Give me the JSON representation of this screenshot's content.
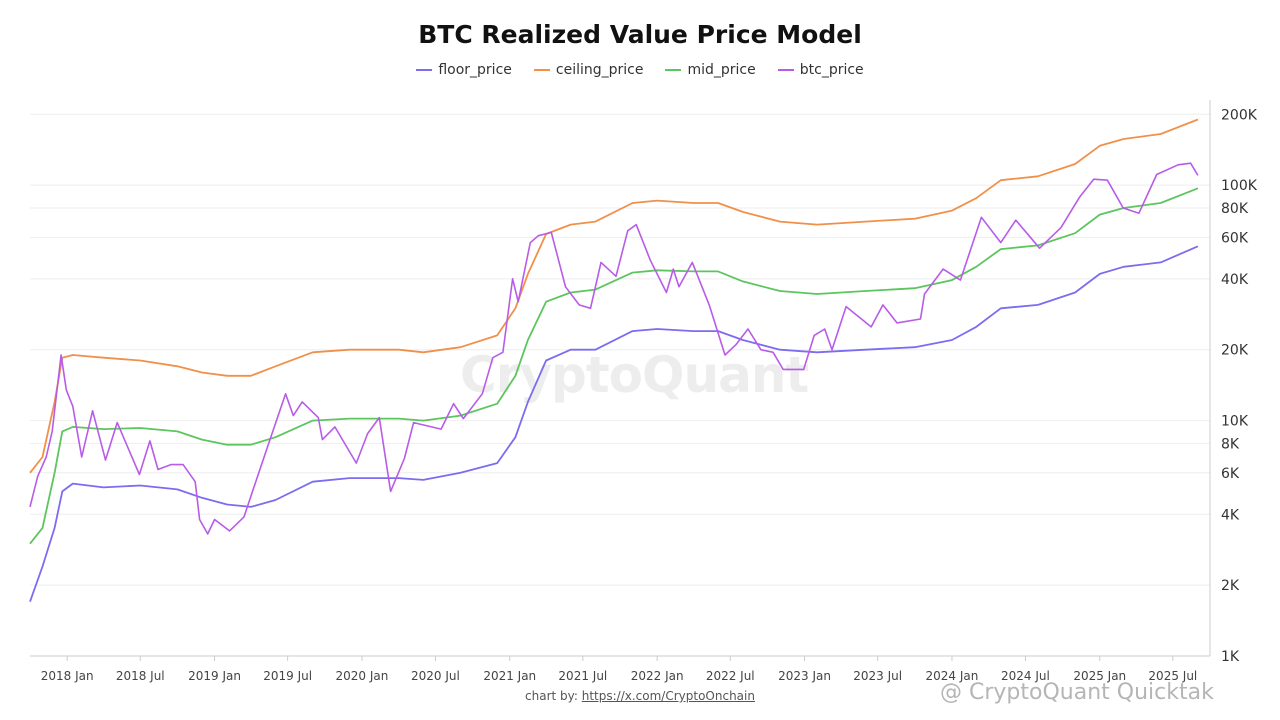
{
  "chart_data": {
    "type": "line",
    "title": "BTC Realized Value Price Model",
    "y_scale": "log",
    "ylim": [
      1000,
      230000
    ],
    "xlim": [
      "2017-10-01",
      "2025-10-01"
    ],
    "y_ticks": [
      {
        "value": 1000,
        "label": "1K"
      },
      {
        "value": 2000,
        "label": "2K"
      },
      {
        "value": 4000,
        "label": "4K"
      },
      {
        "value": 6000,
        "label": "6K"
      },
      {
        "value": 8000,
        "label": "8K"
      },
      {
        "value": 10000,
        "label": "10K"
      },
      {
        "value": 20000,
        "label": "20K"
      },
      {
        "value": 40000,
        "label": "40K"
      },
      {
        "value": 60000,
        "label": "60K"
      },
      {
        "value": 80000,
        "label": "80K"
      },
      {
        "value": 100000,
        "label": "100K"
      },
      {
        "value": 200000,
        "label": "200K"
      }
    ],
    "x_ticks": [
      {
        "date": "2018-01-01",
        "label": "2018 Jan"
      },
      {
        "date": "2018-07-01",
        "label": "2018 Jul"
      },
      {
        "date": "2019-01-01",
        "label": "2019 Jan"
      },
      {
        "date": "2019-07-01",
        "label": "2019 Jul"
      },
      {
        "date": "2020-01-01",
        "label": "2020 Jan"
      },
      {
        "date": "2020-07-01",
        "label": "2020 Jul"
      },
      {
        "date": "2021-01-01",
        "label": "2021 Jan"
      },
      {
        "date": "2021-07-01",
        "label": "2021 Jul"
      },
      {
        "date": "2022-01-01",
        "label": "2022 Jan"
      },
      {
        "date": "2022-07-01",
        "label": "2022 Jul"
      },
      {
        "date": "2023-01-01",
        "label": "2023 Jan"
      },
      {
        "date": "2023-07-01",
        "label": "2023 Jul"
      },
      {
        "date": "2024-01-01",
        "label": "2024 Jan"
      },
      {
        "date": "2024-07-01",
        "label": "2024 Jul"
      },
      {
        "date": "2025-01-01",
        "label": "2025 Jan"
      },
      {
        "date": "2025-07-01",
        "label": "2025 Jul"
      }
    ],
    "grid": true,
    "legend_position": "top-center",
    "series": [
      {
        "name": "floor_price",
        "color": "#7b6cf0",
        "points": [
          [
            "2017-10-01",
            1700
          ],
          [
            "2017-11-01",
            2400
          ],
          [
            "2017-12-01",
            3500
          ],
          [
            "2017-12-20",
            5000
          ],
          [
            "2018-01-15",
            5400
          ],
          [
            "2018-04-01",
            5200
          ],
          [
            "2018-07-01",
            5300
          ],
          [
            "2018-10-01",
            5100
          ],
          [
            "2018-12-01",
            4700
          ],
          [
            "2019-02-01",
            4400
          ],
          [
            "2019-04-01",
            4300
          ],
          [
            "2019-06-01",
            4600
          ],
          [
            "2019-09-01",
            5500
          ],
          [
            "2019-12-01",
            5700
          ],
          [
            "2020-04-01",
            5700
          ],
          [
            "2020-06-01",
            5600
          ],
          [
            "2020-09-01",
            6000
          ],
          [
            "2020-12-01",
            6600
          ],
          [
            "2021-01-15",
            8500
          ],
          [
            "2021-02-15",
            12000
          ],
          [
            "2021-04-01",
            18000
          ],
          [
            "2021-06-01",
            20000
          ],
          [
            "2021-08-01",
            20000
          ],
          [
            "2021-11-01",
            24000
          ],
          [
            "2022-01-01",
            24500
          ],
          [
            "2022-04-01",
            24000
          ],
          [
            "2022-06-01",
            24000
          ],
          [
            "2022-08-01",
            22000
          ],
          [
            "2022-11-01",
            20000
          ],
          [
            "2023-02-01",
            19500
          ],
          [
            "2023-06-01",
            20000
          ],
          [
            "2023-10-01",
            20500
          ],
          [
            "2024-01-01",
            22000
          ],
          [
            "2024-03-01",
            25000
          ],
          [
            "2024-05-01",
            30000
          ],
          [
            "2024-08-01",
            31000
          ],
          [
            "2024-11-01",
            35000
          ],
          [
            "2025-01-01",
            42000
          ],
          [
            "2025-03-01",
            45000
          ],
          [
            "2025-06-01",
            47000
          ],
          [
            "2025-09-01",
            55000
          ]
        ]
      },
      {
        "name": "ceiling_price",
        "color": "#f0904a",
        "points": [
          [
            "2017-10-01",
            6000
          ],
          [
            "2017-11-01",
            7000
          ],
          [
            "2017-12-01",
            12000
          ],
          [
            "2017-12-20",
            18500
          ],
          [
            "2018-01-15",
            19000
          ],
          [
            "2018-04-01",
            18500
          ],
          [
            "2018-07-01",
            18000
          ],
          [
            "2018-10-01",
            17000
          ],
          [
            "2018-12-01",
            16000
          ],
          [
            "2019-02-01",
            15500
          ],
          [
            "2019-04-01",
            15500
          ],
          [
            "2019-06-01",
            17000
          ],
          [
            "2019-09-01",
            19500
          ],
          [
            "2019-12-01",
            20000
          ],
          [
            "2020-04-01",
            20000
          ],
          [
            "2020-06-01",
            19500
          ],
          [
            "2020-09-01",
            20500
          ],
          [
            "2020-12-01",
            23000
          ],
          [
            "2021-01-15",
            30000
          ],
          [
            "2021-02-15",
            42000
          ],
          [
            "2021-04-01",
            62000
          ],
          [
            "2021-06-01",
            68000
          ],
          [
            "2021-08-01",
            70000
          ],
          [
            "2021-11-01",
            84000
          ],
          [
            "2022-01-01",
            86000
          ],
          [
            "2022-04-01",
            84000
          ],
          [
            "2022-06-01",
            84000
          ],
          [
            "2022-08-01",
            77000
          ],
          [
            "2022-11-01",
            70000
          ],
          [
            "2023-02-01",
            68000
          ],
          [
            "2023-06-01",
            70000
          ],
          [
            "2023-10-01",
            72000
          ],
          [
            "2024-01-01",
            78000
          ],
          [
            "2024-03-01",
            88000
          ],
          [
            "2024-05-01",
            105000
          ],
          [
            "2024-08-01",
            109000
          ],
          [
            "2024-11-01",
            123000
          ],
          [
            "2025-01-01",
            147000
          ],
          [
            "2025-03-01",
            157000
          ],
          [
            "2025-06-01",
            165000
          ],
          [
            "2025-09-01",
            190000
          ]
        ]
      },
      {
        "name": "mid_price",
        "color": "#5cc55e",
        "points": [
          [
            "2017-10-01",
            3000
          ],
          [
            "2017-11-01",
            3500
          ],
          [
            "2017-12-01",
            6000
          ],
          [
            "2017-12-20",
            9000
          ],
          [
            "2018-01-15",
            9400
          ],
          [
            "2018-04-01",
            9200
          ],
          [
            "2018-07-01",
            9300
          ],
          [
            "2018-10-01",
            9000
          ],
          [
            "2018-12-01",
            8300
          ],
          [
            "2019-02-01",
            7900
          ],
          [
            "2019-04-01",
            7900
          ],
          [
            "2019-06-01",
            8500
          ],
          [
            "2019-09-01",
            10000
          ],
          [
            "2019-12-01",
            10200
          ],
          [
            "2020-04-01",
            10200
          ],
          [
            "2020-06-01",
            10000
          ],
          [
            "2020-09-01",
            10500
          ],
          [
            "2020-12-01",
            11800
          ],
          [
            "2021-01-15",
            15500
          ],
          [
            "2021-02-15",
            22000
          ],
          [
            "2021-04-01",
            32000
          ],
          [
            "2021-06-01",
            35000
          ],
          [
            "2021-08-01",
            36000
          ],
          [
            "2021-11-01",
            42500
          ],
          [
            "2022-01-01",
            43500
          ],
          [
            "2022-04-01",
            43000
          ],
          [
            "2022-06-01",
            43000
          ],
          [
            "2022-08-01",
            39000
          ],
          [
            "2022-11-01",
            35500
          ],
          [
            "2023-02-01",
            34500
          ],
          [
            "2023-06-01",
            35500
          ],
          [
            "2023-10-01",
            36500
          ],
          [
            "2024-01-01",
            39500
          ],
          [
            "2024-03-01",
            45000
          ],
          [
            "2024-05-01",
            53500
          ],
          [
            "2024-08-01",
            55500
          ],
          [
            "2024-11-01",
            62500
          ],
          [
            "2025-01-01",
            75000
          ],
          [
            "2025-03-01",
            80000
          ],
          [
            "2025-06-01",
            84000
          ],
          [
            "2025-09-01",
            97000
          ]
        ]
      },
      {
        "name": "btc_price",
        "color": "#b85ce8",
        "points": [
          [
            "2017-10-01",
            4300
          ],
          [
            "2017-10-20",
            5800
          ],
          [
            "2017-11-10",
            7000
          ],
          [
            "2017-11-25",
            9000
          ],
          [
            "2017-12-17",
            19000
          ],
          [
            "2017-12-30",
            13500
          ],
          [
            "2018-01-15",
            11500
          ],
          [
            "2018-02-06",
            7000
          ],
          [
            "2018-03-05",
            11000
          ],
          [
            "2018-04-06",
            6800
          ],
          [
            "2018-05-05",
            9800
          ],
          [
            "2018-06-29",
            5900
          ],
          [
            "2018-07-25",
            8200
          ],
          [
            "2018-08-14",
            6200
          ],
          [
            "2018-09-15",
            6500
          ],
          [
            "2018-10-15",
            6500
          ],
          [
            "2018-11-14",
            5500
          ],
          [
            "2018-11-25",
            3800
          ],
          [
            "2018-12-15",
            3300
          ],
          [
            "2019-01-01",
            3800
          ],
          [
            "2019-02-07",
            3400
          ],
          [
            "2019-03-15",
            3900
          ],
          [
            "2019-04-05",
            5000
          ],
          [
            "2019-05-15",
            8000
          ],
          [
            "2019-06-26",
            13000
          ],
          [
            "2019-07-15",
            10500
          ],
          [
            "2019-08-06",
            12000
          ],
          [
            "2019-09-15",
            10300
          ],
          [
            "2019-09-25",
            8300
          ],
          [
            "2019-10-26",
            9400
          ],
          [
            "2019-12-18",
            6600
          ],
          [
            "2020-01-15",
            8800
          ],
          [
            "2020-02-13",
            10300
          ],
          [
            "2020-03-12",
            5000
          ],
          [
            "2020-04-15",
            6900
          ],
          [
            "2020-05-08",
            9800
          ],
          [
            "2020-07-15",
            9200
          ],
          [
            "2020-08-15",
            11800
          ],
          [
            "2020-09-08",
            10200
          ],
          [
            "2020-10-25",
            13000
          ],
          [
            "2020-11-20",
            18500
          ],
          [
            "2020-12-15",
            19500
          ],
          [
            "2021-01-08",
            40000
          ],
          [
            "2021-01-22",
            32000
          ],
          [
            "2021-02-21",
            57000
          ],
          [
            "2021-03-13",
            61000
          ],
          [
            "2021-04-14",
            63000
          ],
          [
            "2021-05-19",
            37000
          ],
          [
            "2021-06-22",
            31000
          ],
          [
            "2021-07-20",
            30000
          ],
          [
            "2021-08-15",
            47000
          ],
          [
            "2021-09-21",
            41000
          ],
          [
            "2021-10-20",
            64000
          ],
          [
            "2021-11-10",
            68000
          ],
          [
            "2021-12-15",
            48000
          ],
          [
            "2022-01-24",
            35000
          ],
          [
            "2022-02-10",
            44000
          ],
          [
            "2022-02-24",
            37000
          ],
          [
            "2022-03-29",
            47000
          ],
          [
            "2022-05-10",
            31000
          ],
          [
            "2022-06-18",
            19000
          ],
          [
            "2022-07-15",
            21000
          ],
          [
            "2022-08-14",
            24500
          ],
          [
            "2022-09-15",
            20000
          ],
          [
            "2022-10-15",
            19500
          ],
          [
            "2022-11-09",
            16500
          ],
          [
            "2022-12-30",
            16500
          ],
          [
            "2023-01-25",
            23000
          ],
          [
            "2023-02-20",
            24500
          ],
          [
            "2023-03-10",
            20000
          ],
          [
            "2023-04-14",
            30500
          ],
          [
            "2023-06-15",
            25000
          ],
          [
            "2023-07-14",
            31000
          ],
          [
            "2023-08-18",
            26000
          ],
          [
            "2023-10-15",
            27000
          ],
          [
            "2023-10-25",
            34500
          ],
          [
            "2023-12-10",
            44000
          ],
          [
            "2024-01-22",
            39500
          ],
          [
            "2024-03-14",
            73000
          ],
          [
            "2024-05-01",
            57000
          ],
          [
            "2024-06-07",
            71000
          ],
          [
            "2024-08-05",
            54000
          ],
          [
            "2024-09-27",
            66000
          ],
          [
            "2024-11-12",
            89000
          ],
          [
            "2024-12-17",
            106000
          ],
          [
            "2025-01-20",
            105000
          ],
          [
            "2025-02-28",
            80000
          ],
          [
            "2025-04-08",
            76000
          ],
          [
            "2025-05-22",
            111000
          ],
          [
            "2025-07-14",
            122000
          ],
          [
            "2025-08-14",
            124000
          ],
          [
            "2025-09-01",
            110000
          ]
        ]
      }
    ]
  },
  "legend": {
    "items": [
      {
        "label": "floor_price",
        "color": "#7b6cf0"
      },
      {
        "label": "ceiling_price",
        "color": "#f0904a"
      },
      {
        "label": "mid_price",
        "color": "#5cc55e"
      },
      {
        "label": "btc_price",
        "color": "#b85ce8"
      }
    ]
  },
  "credit": {
    "prefix": "chart by: ",
    "link_text": "https://x.com/CryptoOnchain"
  },
  "watermark": {
    "text": "CryptoQuant",
    "secondary": "@ CryptoQuant Quicktak"
  }
}
